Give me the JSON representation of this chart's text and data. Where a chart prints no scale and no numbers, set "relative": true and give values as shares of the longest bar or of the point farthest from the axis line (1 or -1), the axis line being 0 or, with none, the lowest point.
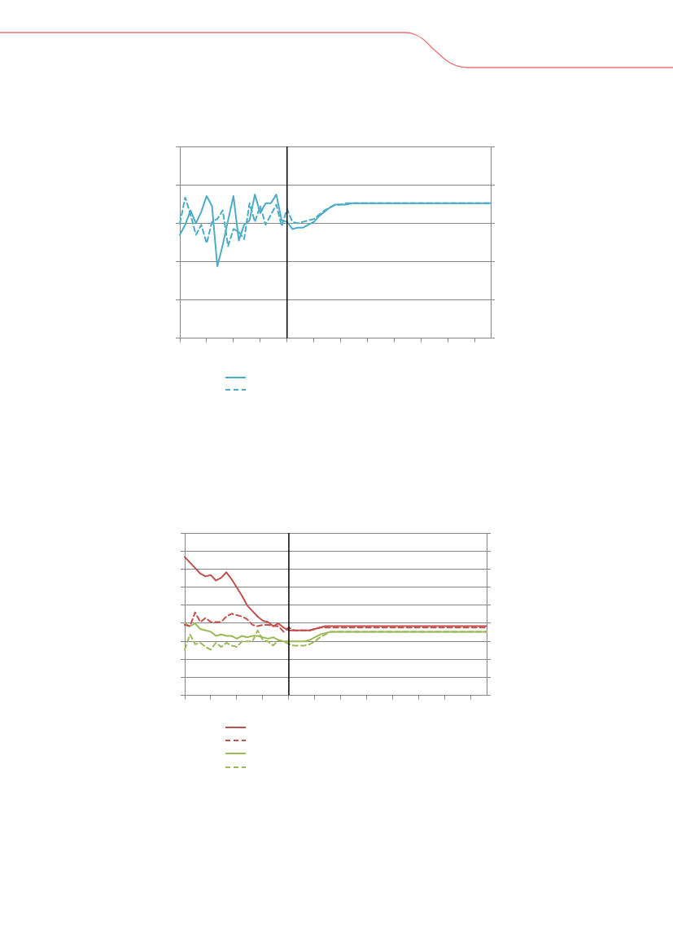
{
  "chart_data": [
    {
      "type": "line",
      "relative": true,
      "grid": "y",
      "marker": "none",
      "categories": [
        null,
        null,
        null,
        null,
        null,
        null,
        null,
        null,
        null,
        null,
        null,
        null,
        null,
        null,
        null,
        null,
        null,
        null,
        null,
        null,
        null,
        null,
        null,
        null,
        null,
        null,
        null,
        null,
        null,
        null,
        null,
        null,
        null,
        null,
        null,
        null,
        null,
        null,
        null,
        null,
        null,
        null,
        null,
        null,
        null,
        null,
        null,
        null,
        null,
        null,
        null,
        null,
        null,
        null,
        null,
        null,
        null,
        null,
        null
      ],
      "series": [
        {
          "color": "#4bacc6",
          "line_style": "solid",
          "values": [
            0.72,
            0.79,
            0.89,
            0.8,
            0.88,
            0.99,
            0.92,
            0.5,
            0.65,
            0.82,
            0.99,
            0.68,
            0.79,
            0.82,
            1.0,
            0.87,
            0.94,
            0.94,
            1.0,
            0.82,
            0.81,
            0.76,
            0.77,
            0.77,
            0.79,
            0.81,
            0.85,
            0.88,
            0.91,
            0.93,
            0.93,
            0.93,
            0.94,
            0.94,
            0.94,
            0.94,
            0.94,
            0.94,
            0.94,
            0.94,
            0.94,
            0.94,
            0.94,
            0.94,
            0.94,
            0.94,
            0.94,
            0.94,
            0.94,
            0.94,
            0.94,
            0.94,
            0.94,
            0.94,
            0.94,
            0.94,
            0.94,
            0.94,
            0.94
          ]
        },
        {
          "color": "#4bacc6",
          "line_style": "dashed",
          "values": [
            0.8,
            0.98,
            0.86,
            0.72,
            0.79,
            0.66,
            0.81,
            0.83,
            0.89,
            0.64,
            0.76,
            0.74,
            0.69,
            0.94,
            0.81,
            0.92,
            0.79,
            0.86,
            0.93,
            0.78,
            0.9,
            0.81,
            0.8,
            0.81,
            0.82,
            0.83,
            0.86,
            0.89,
            0.91,
            0.93,
            0.93,
            0.94,
            0.94,
            0.94,
            0.94,
            0.94,
            0.94,
            0.94,
            0.94,
            0.94,
            0.94,
            0.94,
            0.94,
            0.94,
            0.94,
            0.94,
            0.94,
            0.94,
            0.94,
            0.94,
            0.94,
            0.94,
            0.94,
            0.94,
            0.94,
            0.94,
            0.94,
            0.94,
            0.94
          ]
        }
      ]
    },
    {
      "type": "line",
      "relative": true,
      "grid": "y",
      "marker": "none",
      "categories": [
        null,
        null,
        null,
        null,
        null,
        null,
        null,
        null,
        null,
        null,
        null,
        null,
        null,
        null,
        null,
        null,
        null,
        null,
        null,
        null,
        null,
        null,
        null,
        null,
        null,
        null,
        null,
        null,
        null,
        null,
        null,
        null,
        null,
        null,
        null,
        null,
        null,
        null,
        null,
        null,
        null,
        null,
        null,
        null,
        null,
        null,
        null,
        null,
        null,
        null,
        null,
        null,
        null,
        null,
        null,
        null,
        null,
        null,
        null
      ],
      "series": [
        {
          "color": "#c0504d",
          "line_style": "solid",
          "values": [
            1.0,
            0.96,
            0.92,
            0.88,
            0.86,
            0.87,
            0.83,
            0.85,
            0.89,
            0.84,
            0.78,
            0.72,
            0.65,
            0.61,
            0.57,
            0.54,
            0.53,
            0.5,
            0.52,
            0.49,
            0.47,
            0.47,
            0.47,
            0.47,
            0.47,
            0.48,
            0.49,
            0.5,
            0.5,
            0.5,
            0.5,
            0.5,
            0.5,
            0.5,
            0.5,
            0.5,
            0.5,
            0.5,
            0.5,
            0.5,
            0.5,
            0.5,
            0.5,
            0.5,
            0.5,
            0.5,
            0.5,
            0.5,
            0.5,
            0.5,
            0.5,
            0.5,
            0.5,
            0.5,
            0.5,
            0.5,
            0.5,
            0.5,
            0.5
          ]
        },
        {
          "color": "#c0504d",
          "line_style": "dashed",
          "values": [
            0.51,
            0.5,
            0.6,
            0.53,
            0.56,
            0.53,
            0.53,
            0.53,
            0.57,
            0.59,
            0.58,
            0.57,
            0.55,
            0.51,
            0.5,
            0.51,
            0.51,
            0.5,
            0.5,
            0.46,
            0.49,
            0.47,
            0.47,
            0.47,
            0.47,
            0.48,
            0.49,
            0.49,
            0.49,
            0.49,
            0.49,
            0.49,
            0.49,
            0.49,
            0.49,
            0.49,
            0.49,
            0.49,
            0.49,
            0.49,
            0.49,
            0.49,
            0.49,
            0.49,
            0.49,
            0.49,
            0.49,
            0.49,
            0.49,
            0.49,
            0.49,
            0.49,
            0.49,
            0.49,
            0.49,
            0.49,
            0.49,
            0.49,
            0.49
          ]
        },
        {
          "color": "#9bbb59",
          "line_style": "solid",
          "values": [
            0.52,
            0.5,
            0.52,
            0.48,
            0.47,
            0.46,
            0.43,
            0.44,
            0.43,
            0.43,
            0.41,
            0.43,
            0.42,
            0.43,
            0.43,
            0.42,
            0.41,
            0.42,
            0.4,
            0.39,
            0.39,
            0.39,
            0.39,
            0.39,
            0.4,
            0.42,
            0.44,
            0.45,
            0.46,
            0.46,
            0.46,
            0.46,
            0.46,
            0.46,
            0.46,
            0.46,
            0.46,
            0.46,
            0.46,
            0.46,
            0.46,
            0.46,
            0.46,
            0.46,
            0.46,
            0.46,
            0.46,
            0.46,
            0.46,
            0.46,
            0.46,
            0.46,
            0.46,
            0.46,
            0.46,
            0.46,
            0.46,
            0.46,
            0.46
          ]
        },
        {
          "color": "#9bbb59",
          "line_style": "dashed",
          "values": [
            0.33,
            0.44,
            0.37,
            0.38,
            0.35,
            0.33,
            0.38,
            0.35,
            0.38,
            0.36,
            0.35,
            0.39,
            0.39,
            0.39,
            0.47,
            0.4,
            0.39,
            0.36,
            0.4,
            0.39,
            0.37,
            0.36,
            0.36,
            0.36,
            0.37,
            0.39,
            0.42,
            0.44,
            0.46,
            0.46,
            0.46,
            0.46,
            0.46,
            0.46,
            0.46,
            0.46,
            0.46,
            0.46,
            0.46,
            0.46,
            0.46,
            0.46,
            0.46,
            0.46,
            0.46,
            0.46,
            0.46,
            0.46,
            0.46,
            0.46,
            0.46,
            0.46,
            0.46,
            0.46,
            0.46,
            0.46,
            0.46,
            0.46,
            0.46
          ]
        }
      ]
    }
  ]
}
